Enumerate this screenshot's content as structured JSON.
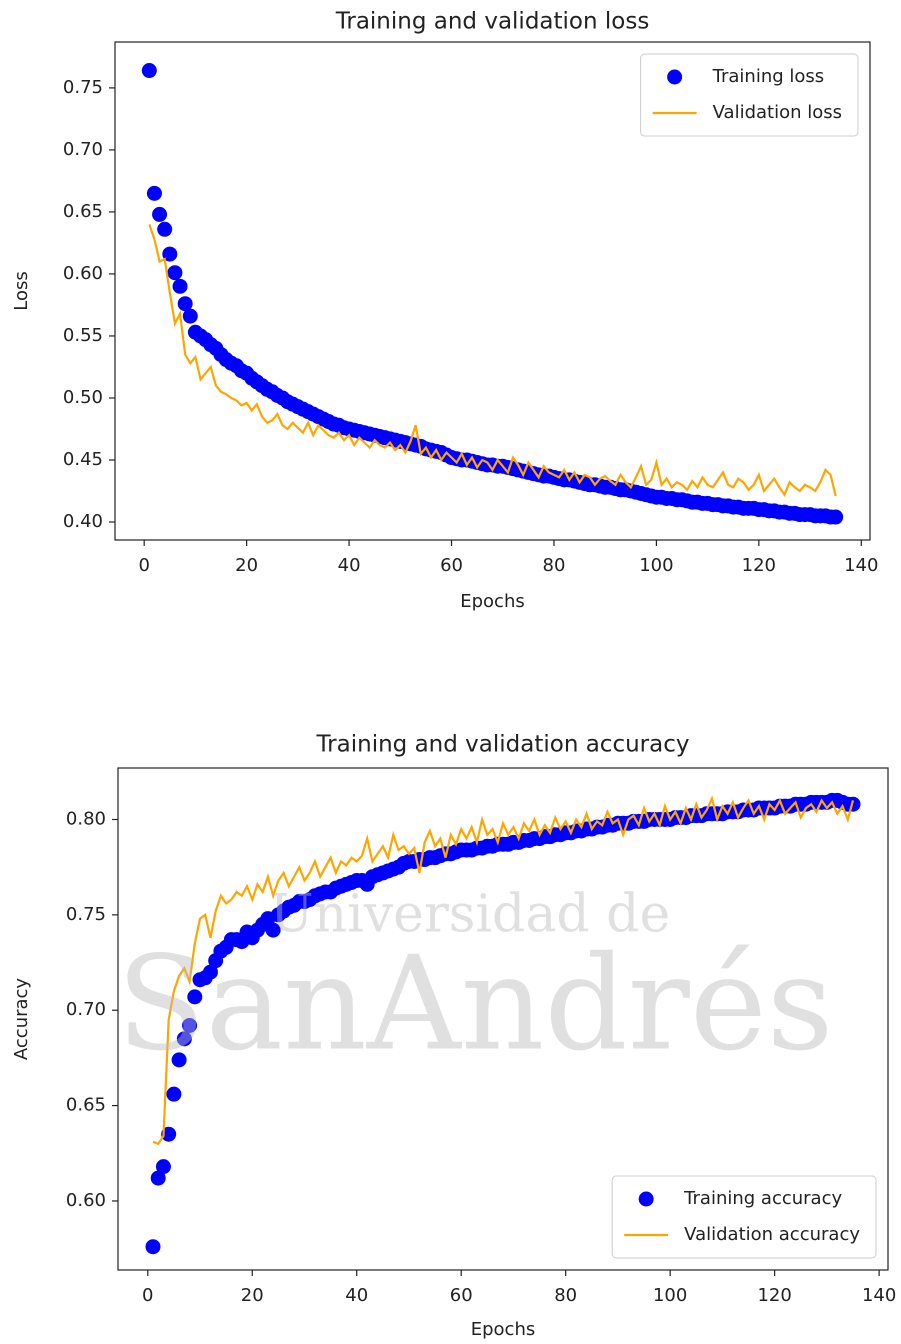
{
  "chart_data": [
    {
      "type": "line",
      "title": "Training and validation loss",
      "xlabel": "Epochs",
      "ylabel": "Loss",
      "legend": "upper right",
      "x": [
        1,
        2,
        3,
        4,
        5,
        6,
        7,
        8,
        9,
        10,
        11,
        12,
        13,
        14,
        15,
        16,
        17,
        18,
        19,
        20,
        21,
        22,
        23,
        24,
        25,
        26,
        27,
        28,
        29,
        30,
        31,
        32,
        33,
        34,
        35,
        36,
        37,
        38,
        39,
        40,
        41,
        42,
        43,
        44,
        45,
        46,
        47,
        48,
        49,
        50,
        51,
        52,
        53,
        54,
        55,
        56,
        57,
        58,
        59,
        60,
        61,
        62,
        63,
        64,
        65,
        66,
        67,
        68,
        69,
        70,
        71,
        72,
        73,
        74,
        75,
        76,
        77,
        78,
        79,
        80,
        81,
        82,
        83,
        84,
        85,
        86,
        87,
        88,
        89,
        90,
        91,
        92,
        93,
        94,
        95,
        96,
        97,
        98,
        99,
        100,
        101,
        102,
        103,
        104,
        105,
        106,
        107,
        108,
        109,
        110,
        111,
        112,
        113,
        114,
        115,
        116,
        117,
        118,
        119,
        120,
        121,
        122,
        123,
        124,
        125,
        126,
        127,
        128,
        129,
        130,
        131,
        132,
        133,
        134,
        135
      ],
      "xlim": [
        -5.7,
        141.7
      ],
      "xticks": [
        0,
        20,
        40,
        60,
        80,
        100,
        120,
        140
      ],
      "ylim": [
        0.3855,
        0.787
      ],
      "yticks": [
        {
          "value": 0.4,
          "label": "0.40"
        },
        {
          "value": 0.45,
          "label": "0.45"
        },
        {
          "value": 0.5,
          "label": "0.50"
        },
        {
          "value": 0.55,
          "label": "0.55"
        },
        {
          "value": 0.6,
          "label": "0.60"
        },
        {
          "value": 0.65,
          "label": "0.65"
        },
        {
          "value": 0.7,
          "label": "0.70"
        },
        {
          "value": 0.75,
          "label": "0.75"
        }
      ],
      "series": [
        {
          "name": "Training loss",
          "color": "#0000ff",
          "mode": "markers",
          "values": [
            0.764,
            0.665,
            0.648,
            0.636,
            0.616,
            0.601,
            0.59,
            0.576,
            0.566,
            0.553,
            0.55,
            0.547,
            0.543,
            0.54,
            0.535,
            0.531,
            0.528,
            0.526,
            0.522,
            0.52,
            0.516,
            0.513,
            0.51,
            0.507,
            0.505,
            0.502,
            0.5,
            0.497,
            0.495,
            0.493,
            0.491,
            0.489,
            0.487,
            0.485,
            0.483,
            0.481,
            0.479,
            0.478,
            0.476,
            0.475,
            0.474,
            0.473,
            0.472,
            0.471,
            0.47,
            0.469,
            0.468,
            0.467,
            0.466,
            0.465,
            0.464,
            0.463,
            0.462,
            0.461,
            0.459,
            0.458,
            0.457,
            0.456,
            0.454,
            0.452,
            0.451,
            0.45,
            0.45,
            0.449,
            0.448,
            0.447,
            0.446,
            0.446,
            0.445,
            0.445,
            0.444,
            0.443,
            0.442,
            0.441,
            0.44,
            0.439,
            0.438,
            0.437,
            0.437,
            0.436,
            0.435,
            0.434,
            0.434,
            0.433,
            0.432,
            0.431,
            0.43,
            0.43,
            0.429,
            0.428,
            0.428,
            0.427,
            0.426,
            0.426,
            0.425,
            0.424,
            0.423,
            0.422,
            0.421,
            0.42,
            0.42,
            0.419,
            0.419,
            0.418,
            0.418,
            0.417,
            0.416,
            0.416,
            0.415,
            0.415,
            0.414,
            0.414,
            0.413,
            0.413,
            0.412,
            0.412,
            0.411,
            0.411,
            0.411,
            0.41,
            0.41,
            0.409,
            0.409,
            0.408,
            0.408,
            0.407,
            0.407,
            0.406,
            0.406,
            0.406,
            0.405,
            0.405,
            0.405,
            0.404,
            0.404
          ]
        },
        {
          "name": "Validation loss",
          "color": "#ffa500",
          "mode": "lines",
          "values": [
            0.64,
            0.628,
            0.61,
            0.612,
            0.585,
            0.56,
            0.568,
            0.535,
            0.528,
            0.533,
            0.515,
            0.52,
            0.525,
            0.51,
            0.505,
            0.503,
            0.5,
            0.498,
            0.494,
            0.496,
            0.49,
            0.495,
            0.485,
            0.48,
            0.482,
            0.487,
            0.478,
            0.475,
            0.48,
            0.476,
            0.472,
            0.48,
            0.47,
            0.478,
            0.474,
            0.47,
            0.468,
            0.472,
            0.466,
            0.47,
            0.462,
            0.468,
            0.464,
            0.46,
            0.466,
            0.462,
            0.46,
            0.464,
            0.458,
            0.462,
            0.456,
            0.465,
            0.478,
            0.455,
            0.46,
            0.452,
            0.458,
            0.45,
            0.456,
            0.452,
            0.448,
            0.455,
            0.446,
            0.452,
            0.444,
            0.45,
            0.448,
            0.442,
            0.45,
            0.445,
            0.44,
            0.452,
            0.446,
            0.438,
            0.448,
            0.442,
            0.436,
            0.445,
            0.44,
            0.438,
            0.436,
            0.442,
            0.434,
            0.44,
            0.432,
            0.438,
            0.436,
            0.43,
            0.435,
            0.437,
            0.433,
            0.43,
            0.438,
            0.432,
            0.428,
            0.436,
            0.445,
            0.43,
            0.434,
            0.448,
            0.43,
            0.435,
            0.428,
            0.432,
            0.43,
            0.426,
            0.433,
            0.428,
            0.436,
            0.43,
            0.428,
            0.434,
            0.44,
            0.43,
            0.428,
            0.435,
            0.432,
            0.426,
            0.43,
            0.438,
            0.425,
            0.43,
            0.435,
            0.428,
            0.422,
            0.432,
            0.428,
            0.425,
            0.43,
            0.428,
            0.425,
            0.432,
            0.442,
            0.438,
            0.421
          ]
        }
      ]
    },
    {
      "type": "line",
      "title": "Training and validation accuracy",
      "xlabel": "Epochs",
      "ylabel": "Accuracy",
      "legend": "lower right",
      "x": [
        1,
        2,
        3,
        4,
        5,
        6,
        7,
        8,
        9,
        10,
        11,
        12,
        13,
        14,
        15,
        16,
        17,
        18,
        19,
        20,
        21,
        22,
        23,
        24,
        25,
        26,
        27,
        28,
        29,
        30,
        31,
        32,
        33,
        34,
        35,
        36,
        37,
        38,
        39,
        40,
        41,
        42,
        43,
        44,
        45,
        46,
        47,
        48,
        49,
        50,
        51,
        52,
        53,
        54,
        55,
        56,
        57,
        58,
        59,
        60,
        61,
        62,
        63,
        64,
        65,
        66,
        67,
        68,
        69,
        70,
        71,
        72,
        73,
        74,
        75,
        76,
        77,
        78,
        79,
        80,
        81,
        82,
        83,
        84,
        85,
        86,
        87,
        88,
        89,
        90,
        91,
        92,
        93,
        94,
        95,
        96,
        97,
        98,
        99,
        100,
        101,
        102,
        103,
        104,
        105,
        106,
        107,
        108,
        109,
        110,
        111,
        112,
        113,
        114,
        115,
        116,
        117,
        118,
        119,
        120,
        121,
        122,
        123,
        124,
        125,
        126,
        127,
        128,
        129,
        130,
        131,
        132,
        133,
        134,
        135
      ],
      "xlim": [
        -5.7,
        141.7
      ],
      "xticks": [
        0,
        20,
        40,
        60,
        80,
        100,
        120,
        140
      ],
      "ylim": [
        0.5638,
        0.827
      ],
      "yticks": [
        {
          "value": 0.6,
          "label": "0.60"
        },
        {
          "value": 0.65,
          "label": "0.65"
        },
        {
          "value": 0.7,
          "label": "0.70"
        },
        {
          "value": 0.75,
          "label": "0.75"
        },
        {
          "value": 0.8,
          "label": "0.80"
        }
      ],
      "series": [
        {
          "name": "Training accuracy",
          "color": "#0000ff",
          "mode": "markers",
          "values": [
            0.576,
            0.612,
            0.618,
            0.635,
            0.656,
            0.674,
            0.685,
            0.692,
            0.707,
            0.716,
            0.717,
            0.72,
            0.726,
            0.731,
            0.733,
            0.737,
            0.737,
            0.736,
            0.741,
            0.738,
            0.742,
            0.745,
            0.748,
            0.742,
            0.75,
            0.752,
            0.754,
            0.755,
            0.757,
            0.757,
            0.758,
            0.76,
            0.761,
            0.762,
            0.762,
            0.764,
            0.765,
            0.766,
            0.767,
            0.768,
            0.768,
            0.766,
            0.77,
            0.771,
            0.772,
            0.773,
            0.774,
            0.775,
            0.777,
            0.778,
            0.778,
            0.779,
            0.779,
            0.78,
            0.78,
            0.781,
            0.782,
            0.782,
            0.783,
            0.784,
            0.784,
            0.784,
            0.785,
            0.785,
            0.786,
            0.786,
            0.787,
            0.787,
            0.787,
            0.788,
            0.788,
            0.789,
            0.789,
            0.79,
            0.79,
            0.791,
            0.791,
            0.792,
            0.792,
            0.793,
            0.793,
            0.794,
            0.794,
            0.795,
            0.795,
            0.796,
            0.796,
            0.797,
            0.797,
            0.798,
            0.798,
            0.798,
            0.799,
            0.799,
            0.799,
            0.8,
            0.8,
            0.8,
            0.8,
            0.8,
            0.801,
            0.801,
            0.801,
            0.802,
            0.802,
            0.802,
            0.803,
            0.803,
            0.803,
            0.803,
            0.804,
            0.804,
            0.804,
            0.805,
            0.805,
            0.805,
            0.806,
            0.806,
            0.806,
            0.806,
            0.807,
            0.807,
            0.807,
            0.808,
            0.808,
            0.808,
            0.809,
            0.809,
            0.809,
            0.809,
            0.81,
            0.81,
            0.809,
            0.808,
            0.808
          ]
        },
        {
          "name": "Validation accuracy",
          "color": "#ffa500",
          "mode": "lines",
          "values": [
            0.631,
            0.63,
            0.634,
            0.695,
            0.71,
            0.718,
            0.722,
            0.715,
            0.735,
            0.748,
            0.75,
            0.738,
            0.752,
            0.76,
            0.756,
            0.758,
            0.762,
            0.76,
            0.765,
            0.758,
            0.766,
            0.762,
            0.77,
            0.76,
            0.768,
            0.772,
            0.765,
            0.77,
            0.775,
            0.768,
            0.772,
            0.778,
            0.77,
            0.775,
            0.78,
            0.772,
            0.778,
            0.776,
            0.78,
            0.778,
            0.781,
            0.79,
            0.778,
            0.782,
            0.786,
            0.78,
            0.792,
            0.784,
            0.786,
            0.782,
            0.785,
            0.772,
            0.788,
            0.794,
            0.786,
            0.79,
            0.78,
            0.792,
            0.787,
            0.795,
            0.79,
            0.796,
            0.788,
            0.8,
            0.792,
            0.795,
            0.788,
            0.798,
            0.792,
            0.796,
            0.79,
            0.798,
            0.794,
            0.8,
            0.792,
            0.797,
            0.793,
            0.801,
            0.795,
            0.799,
            0.793,
            0.8,
            0.796,
            0.803,
            0.795,
            0.799,
            0.797,
            0.804,
            0.798,
            0.8,
            0.792,
            0.8,
            0.802,
            0.797,
            0.806,
            0.799,
            0.803,
            0.797,
            0.807,
            0.8,
            0.804,
            0.798,
            0.806,
            0.8,
            0.808,
            0.801,
            0.805,
            0.811,
            0.8,
            0.807,
            0.803,
            0.809,
            0.801,
            0.806,
            0.81,
            0.803,
            0.807,
            0.8,
            0.808,
            0.805,
            0.81,
            0.803,
            0.806,
            0.809,
            0.801,
            0.806,
            0.808,
            0.804,
            0.81,
            0.806,
            0.809,
            0.803,
            0.807,
            0.8,
            0.81
          ]
        }
      ]
    }
  ],
  "watermark": [
    "Universidad de",
    "SanAndrés"
  ]
}
